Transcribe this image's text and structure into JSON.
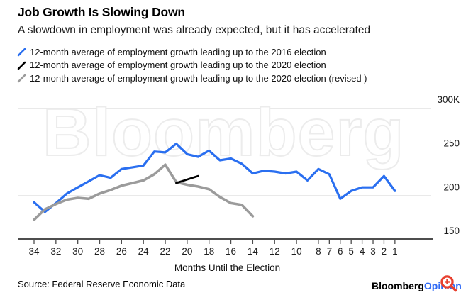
{
  "chart_data": {
    "type": "line",
    "title": "Job Growth Is Slowing Down",
    "subtitle": "A slowdown in employment was already expected, but it has accelerated",
    "xlabel": "Months Until the Election",
    "ylabel": "",
    "watermark": "Bloomberg",
    "x_axis_reversed": true,
    "x_ticks": [
      34,
      32,
      30,
      28,
      26,
      24,
      22,
      20,
      18,
      16,
      14,
      12,
      10,
      8,
      7,
      6,
      5,
      4,
      3,
      2,
      1
    ],
    "ylim": [
      150,
      300
    ],
    "y_ticks": [
      {
        "value": 300,
        "label": "300K"
      },
      {
        "value": 250,
        "label": "250"
      },
      {
        "value": 200,
        "label": "200"
      },
      {
        "value": 150,
        "label": "150"
      }
    ],
    "grid": "horizontal",
    "legend_position": "top-left",
    "units": "thousands of jobs",
    "series": [
      {
        "name": "12-month average of employment growth leading up to the 2016 election",
        "color": "#2a6ff0",
        "months": [
          34,
          33,
          32,
          31,
          30,
          29,
          28,
          27,
          26,
          25,
          24,
          23,
          22,
          21,
          20,
          19,
          18,
          17,
          16,
          15,
          14,
          13,
          12,
          11,
          10,
          9,
          8,
          7,
          6,
          5,
          4,
          3,
          2,
          1
        ],
        "values": [
          192,
          181,
          191,
          202,
          209,
          216,
          223,
          220,
          230,
          232,
          234,
          250,
          249,
          259,
          247,
          244,
          251,
          240,
          242,
          236,
          225,
          228,
          227,
          225,
          227,
          217,
          230,
          224,
          196,
          205,
          209,
          209,
          222,
          205
        ]
      },
      {
        "name": "12-month average of employment growth leading up to the 2020 election",
        "color": "#000000",
        "months": [
          21,
          20,
          19
        ],
        "values": [
          214,
          218,
          222
        ]
      },
      {
        "name": "12-month average of employment growth leading up to the 2020 election (revised )",
        "color": "#9b9b9b",
        "months": [
          34,
          33,
          32,
          31,
          30,
          29,
          28,
          27,
          26,
          25,
          24,
          23,
          22,
          21,
          20,
          19,
          18,
          17,
          16,
          15,
          14
        ],
        "values": [
          172,
          184,
          190,
          195,
          197,
          196,
          202,
          206,
          211,
          214,
          217,
          224,
          235,
          215,
          212,
          210,
          207,
          198,
          191,
          189,
          176
        ]
      }
    ]
  },
  "footer": {
    "source": "Source: Federal Reserve Economic Data",
    "logo_bloomberg": "Bloomberg",
    "logo_opinion": "Opinion",
    "logo_opinion_color": "#2f6af5",
    "logo_icon_color": "#e8402f"
  }
}
